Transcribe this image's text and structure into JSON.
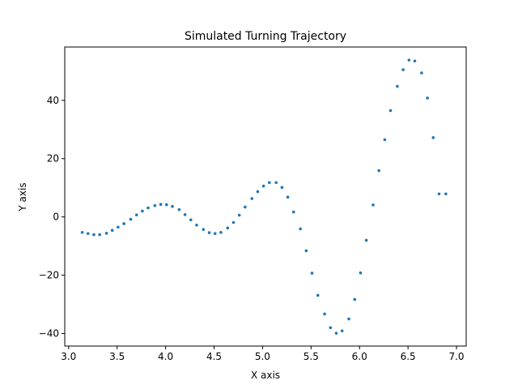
{
  "chart_data": {
    "type": "scatter",
    "title": "Simulated Turning Trajectory",
    "xlabel": "X axis",
    "ylabel": "Y axis",
    "xlim": [
      2.96,
      7.1
    ],
    "ylim": [
      -44.3,
      58.3
    ],
    "grid": false,
    "legend": "none",
    "marker_color": "#1f77b4",
    "x_ticks": [
      3.0,
      3.5,
      4.0,
      4.5,
      5.0,
      5.5,
      6.0,
      6.5,
      7.0
    ],
    "x_tick_labels": [
      "3.0",
      "3.5",
      "4.0",
      "4.5",
      "5.0",
      "5.5",
      "6.0",
      "6.5",
      "7.0"
    ],
    "y_ticks": [
      -40,
      -20,
      0,
      20,
      40
    ],
    "y_tick_labels": [
      "−40",
      "−20",
      "0",
      "20",
      "40"
    ],
    "series": [
      {
        "x": [
          3.14,
          3.2,
          3.26,
          3.32,
          3.39,
          3.45,
          3.51,
          3.57,
          3.64,
          3.7,
          3.76,
          3.82,
          3.89,
          3.95,
          4.01,
          4.07,
          4.14,
          4.2,
          4.26,
          4.32,
          4.39,
          4.45,
          4.51,
          4.57,
          4.64,
          4.7,
          4.76,
          4.82,
          4.89,
          4.95,
          5.01,
          5.07,
          5.14,
          5.2,
          5.26,
          5.32,
          5.39,
          5.45,
          5.51,
          5.57,
          5.64,
          5.7,
          5.76,
          5.82,
          5.89,
          5.95,
          6.01,
          6.07,
          6.14,
          6.2,
          6.26,
          6.32,
          6.39,
          6.45,
          6.51,
          6.57,
          6.64,
          6.7,
          6.76,
          6.82,
          6.89
        ],
        "y": [
          -5.3,
          -5.7,
          -6.1,
          -6.1,
          -5.6,
          -4.6,
          -3.5,
          -2.3,
          -0.8,
          0.7,
          2.0,
          3.1,
          3.9,
          4.3,
          4.2,
          3.6,
          2.5,
          0.8,
          -1.0,
          -2.8,
          -4.3,
          -5.4,
          -5.7,
          -5.3,
          -3.8,
          -1.9,
          0.6,
          3.4,
          6.3,
          8.7,
          10.6,
          11.8,
          11.8,
          10.1,
          6.8,
          1.7,
          -4.1,
          -11.6,
          -19.3,
          -26.9,
          -33.3,
          -38.0,
          -39.9,
          -39.1,
          -35.0,
          -28.3,
          -19.2,
          -8.0,
          4.1,
          15.9,
          26.5,
          36.5,
          44.8,
          50.5,
          53.8,
          53.5,
          49.4,
          40.8,
          27.2,
          7.9,
          7.9
        ]
      }
    ]
  }
}
